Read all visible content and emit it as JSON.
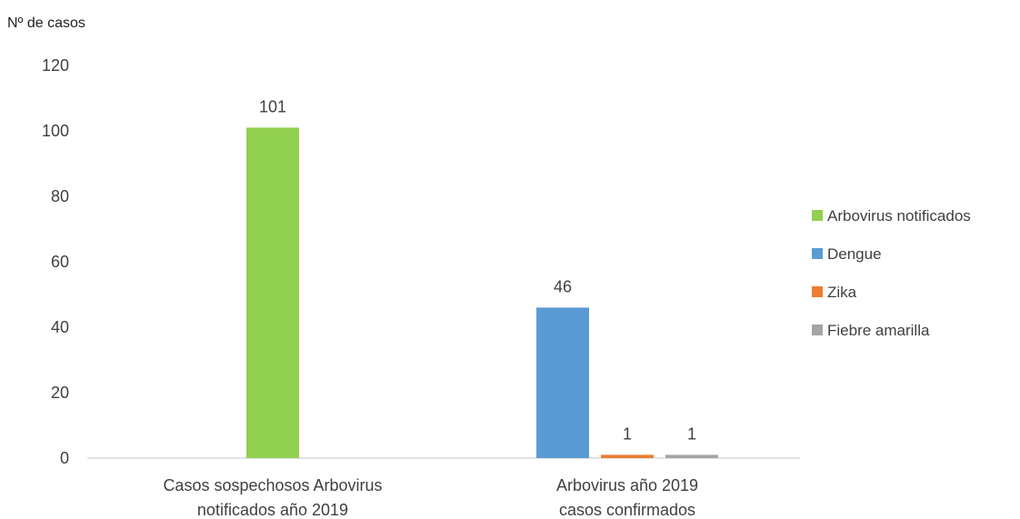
{
  "chart_data": {
    "type": "bar",
    "ylabel": "Nº de casos",
    "ylim": [
      0,
      120
    ],
    "yticks": [
      0,
      20,
      40,
      60,
      80,
      100,
      120
    ],
    "grid": false,
    "legend_position": "right",
    "categories": [
      [
        "Casos sospechosos Arbovirus",
        "notificados año 2019"
      ],
      [
        "Arbovirus año 2019",
        "casos confirmados"
      ]
    ],
    "series": [
      {
        "name": "Arbovirus notificados",
        "color": "#92d050",
        "values": [
          101,
          null
        ]
      },
      {
        "name": "Dengue",
        "color": "#5b9bd5",
        "values": [
          null,
          46
        ]
      },
      {
        "name": "Zika",
        "color": "#ed7d31",
        "values": [
          null,
          1
        ]
      },
      {
        "name": "Fiebre amarilla",
        "color": "#a5a5a5",
        "values": [
          null,
          1
        ]
      }
    ]
  }
}
